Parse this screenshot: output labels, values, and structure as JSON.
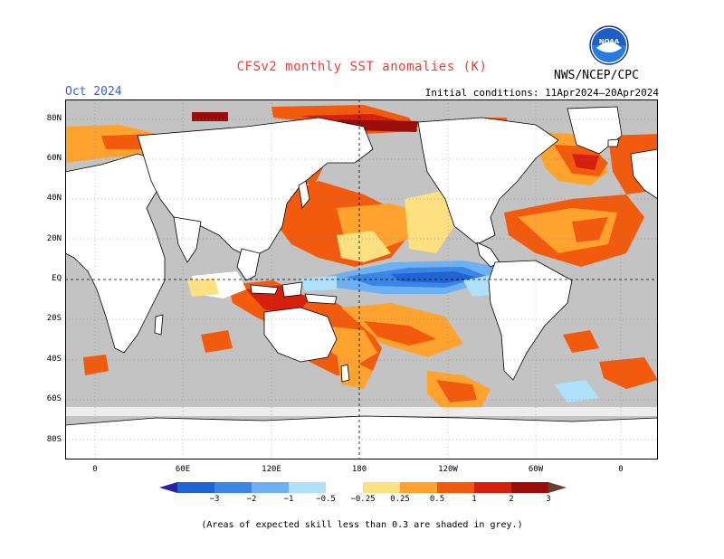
{
  "header": {
    "title": "CFSv2 monthly SST anomalies (K)",
    "valid_month": "Oct 2024",
    "initial_conditions": "Initial conditions: 11Apr2024–20Apr2024",
    "organization": "NWS/NCEP/CPC",
    "logo_text": "NOAA"
  },
  "axes": {
    "lat_labels": [
      "80N",
      "60N",
      "40N",
      "20N",
      "EQ",
      "20S",
      "40S",
      "60S",
      "80S"
    ],
    "lon_labels": [
      "0",
      "60E",
      "120E",
      "180",
      "120W",
      "60W",
      "0"
    ]
  },
  "colorbar": {
    "labels": [
      "−3",
      "−2",
      "−1",
      "−0.5",
      "−0.25",
      "0.25",
      "0.5",
      "1",
      "2",
      "3"
    ],
    "colors": [
      "#2b1fa4",
      "#1f63d4",
      "#3a86e6",
      "#6eb1f2",
      "#aee0f9",
      "#ffffff",
      "#fde07f",
      "#ffa22e",
      "#f25a0e",
      "#d61f0c",
      "#9c0d0a",
      "#6b3f2f"
    ]
  },
  "colors": {
    "land": "#ffffff",
    "low_skill": "#c3c3c3",
    "title": "#e8423c",
    "month": "#3a5fcd"
  },
  "footnote": "(Areas of expected skill less than 0.3 are shaded in grey.)"
}
